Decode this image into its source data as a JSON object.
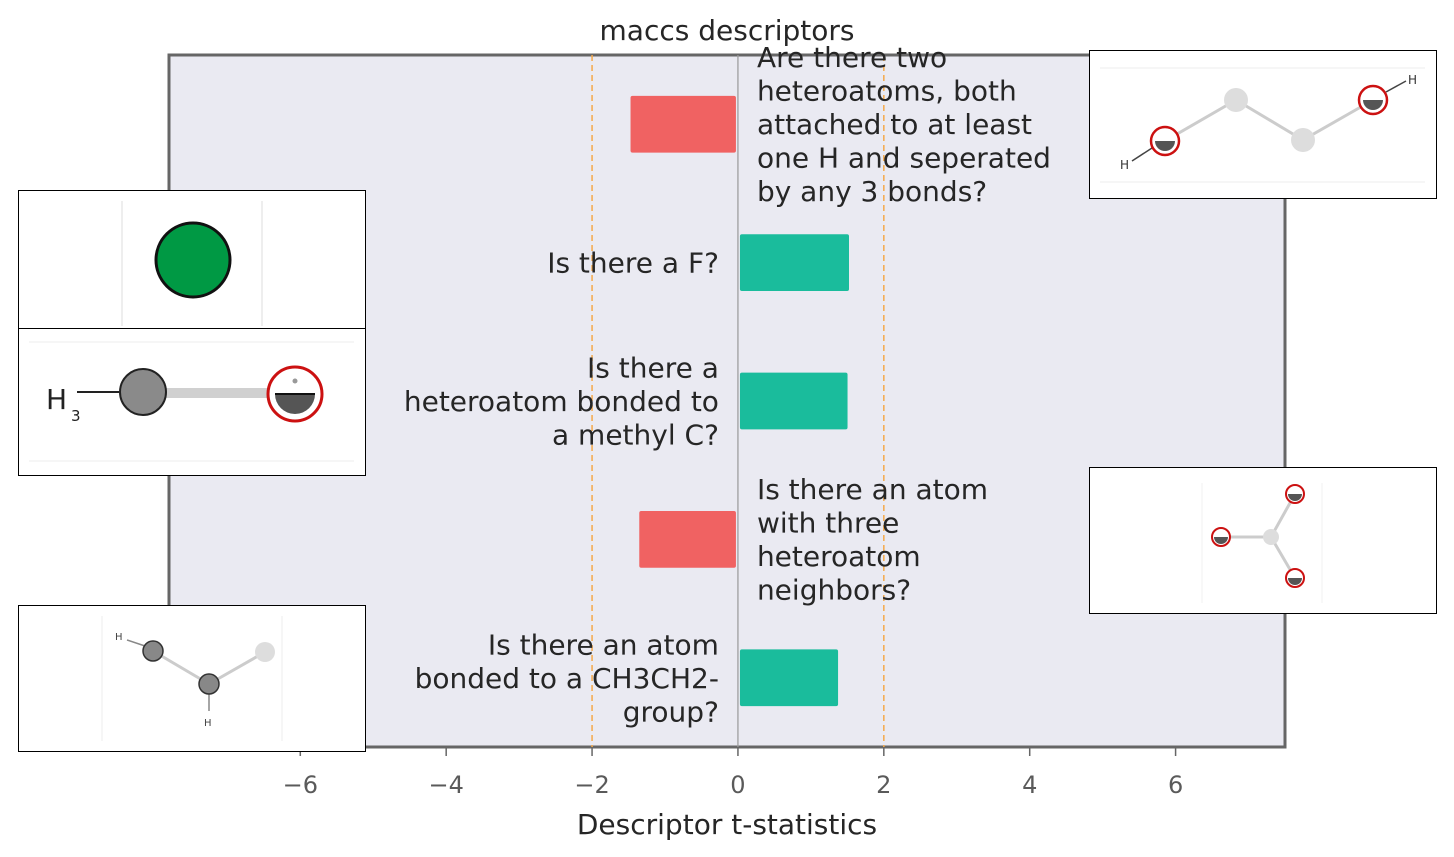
{
  "chart_data": {
    "type": "bar",
    "orientation": "horizontal",
    "title": "maccs descriptors",
    "xlabel": "Descriptor t-statistics",
    "xlim": [
      -7.8,
      7.5
    ],
    "xticks": [
      -6,
      -4,
      -2,
      0,
      2,
      4,
      6
    ],
    "xtick_labels": [
      "−6",
      "−4",
      "−2",
      "0",
      "2",
      "4",
      "6"
    ],
    "threshold_lines": [
      -2,
      2
    ],
    "grid": false,
    "categories": [
      "Are there two heteroatoms, both attached to at least one H and seperated by any 3 bonds?",
      "Is there a F?",
      "Is there a heteroatom bonded to a methyl C?",
      "Is there an atom with three heteroatom neighbors?",
      "Is there an atom bonded to a CH3CH2- group?"
    ],
    "label_lines": [
      [
        "Are there two",
        "heteroatoms, both",
        "attached to at least",
        "one H and seperated",
        "by any 3 bonds?"
      ],
      [
        "Is there a F?"
      ],
      [
        "Is there a",
        "heteroatom bonded to",
        "a methyl C?"
      ],
      [
        "Is there an atom",
        "with three",
        "heteroatom",
        "neighbors?"
      ],
      [
        "Is there an atom",
        "bonded to a CH3CH2-",
        "group?"
      ]
    ],
    "values": [
      -1.5,
      1.55,
      1.53,
      -1.38,
      1.4
    ],
    "colors": {
      "positive": "#1abc9c",
      "negative": "#f06262",
      "threshold": "#f5a94a",
      "zero_line": "#999999",
      "plot_bg": "#eaeaf2",
      "frame": "#666666"
    }
  },
  "insets": [
    {
      "name": "inset-fluorine-atom",
      "description": "green atom"
    },
    {
      "name": "inset-methyl-heteroatom"
    },
    {
      "name": "inset-cch2-group"
    },
    {
      "name": "inset-two-heteroatoms-3-bonds"
    },
    {
      "name": "inset-three-heteroatom-neighbors"
    }
  ]
}
